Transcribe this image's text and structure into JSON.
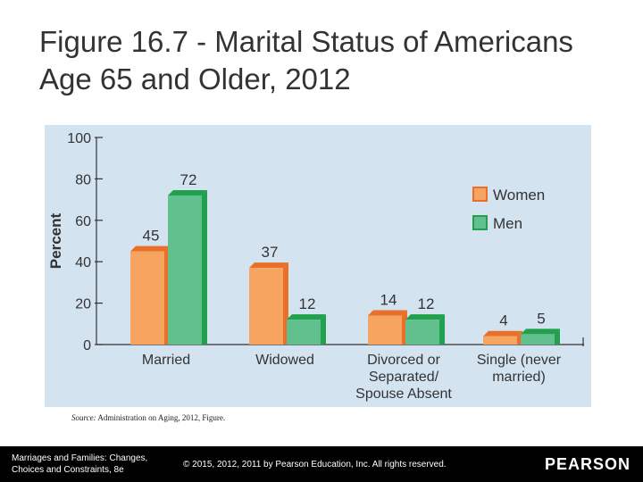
{
  "title": "Figure 16.7 - Marital Status of Americans Age 65 and Older, 2012",
  "source": {
    "label": "Source:",
    "text": "Administration on Aging, 2012, Figure."
  },
  "footer": {
    "book_line1": "Marriages and Families: Changes,",
    "book_line2": "Choices and Constraints, 8e",
    "copyright": "© 2015, 2012, 2011 by Pearson Education, Inc. All rights reserved.",
    "logo": "PEARSON"
  },
  "colors": {
    "women": "#f7a460",
    "women_edge": "#e8702a",
    "men": "#62c08e",
    "men_edge": "#22a04e",
    "panel": "#d4e3f0"
  },
  "chart_data": {
    "type": "bar",
    "ylabel": "Percent",
    "ylim": [
      0,
      100
    ],
    "yticks": [
      "0",
      "20",
      "40",
      "60",
      "80",
      "100"
    ],
    "categories": [
      [
        "Married"
      ],
      [
        "Widowed"
      ],
      [
        "Divorced or",
        "Separated/",
        "Spouse Absent"
      ],
      [
        "Single (never",
        "married)"
      ]
    ],
    "series": [
      {
        "name": "Women",
        "values": [
          45,
          37,
          14,
          4
        ]
      },
      {
        "name": "Men",
        "values": [
          72,
          12,
          12,
          5
        ]
      }
    ],
    "legend_position": "right"
  }
}
